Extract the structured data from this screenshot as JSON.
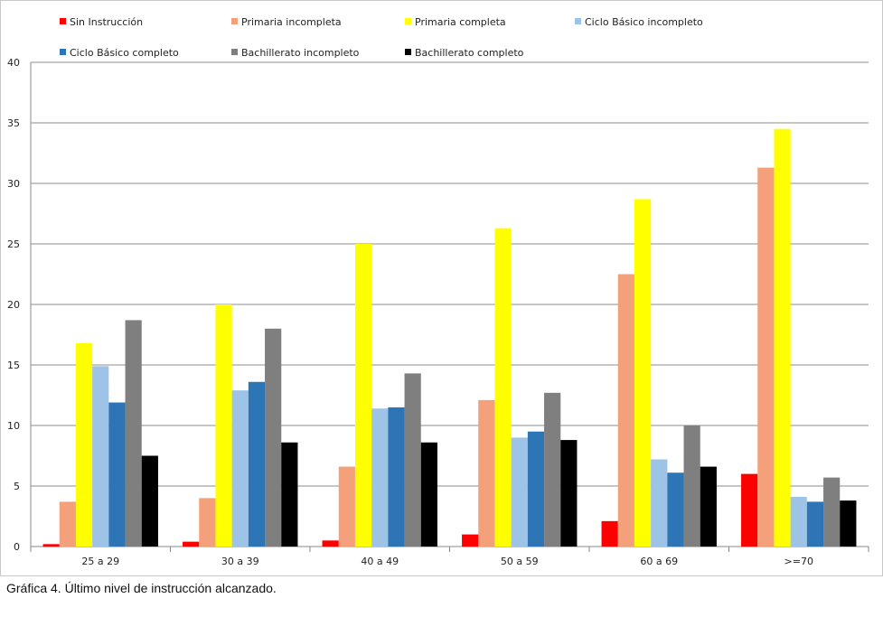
{
  "caption": "Gráfica 4. Último nivel de instrucción alcanzado.",
  "chart_data": {
    "type": "bar",
    "title": "",
    "xlabel": "",
    "ylabel": "",
    "ylim": [
      0,
      40
    ],
    "yticks": [
      0,
      5,
      10,
      15,
      20,
      25,
      30,
      35,
      40
    ],
    "grid": true,
    "legend_position": "top",
    "categories": [
      "25 a 29",
      "30 a 39",
      "40 a 49",
      "50 a 59",
      "60 a 69",
      ">=70"
    ],
    "series": [
      {
        "name": "Sin Instrucción",
        "color": "#ff0000",
        "values": [
          0.2,
          0.4,
          0.5,
          1.0,
          2.1,
          6.0
        ]
      },
      {
        "name": "Primaria incompleta",
        "color": "#f4a07a",
        "values": [
          3.7,
          4.0,
          6.6,
          12.1,
          22.5,
          31.3
        ]
      },
      {
        "name": "Primaria completa",
        "color": "#ffff00",
        "values": [
          16.8,
          20.0,
          25.0,
          26.3,
          28.7,
          34.5
        ]
      },
      {
        "name": "Ciclo Básico incompleto",
        "color": "#9dc3e6",
        "values": [
          14.9,
          12.9,
          11.4,
          9.0,
          7.2,
          4.1
        ]
      },
      {
        "name": "Ciclo Básico completo",
        "color": "#2e75b6",
        "values": [
          11.9,
          13.6,
          11.5,
          9.5,
          6.1,
          3.7
        ]
      },
      {
        "name": "Bachillerato incompleto",
        "color": "#7f7f7f",
        "values": [
          18.7,
          18.0,
          14.3,
          12.7,
          10.0,
          5.7
        ]
      },
      {
        "name": "Bachillerato completo",
        "color": "#000000",
        "values": [
          7.5,
          8.6,
          8.6,
          8.8,
          6.6,
          3.8
        ]
      }
    ]
  }
}
